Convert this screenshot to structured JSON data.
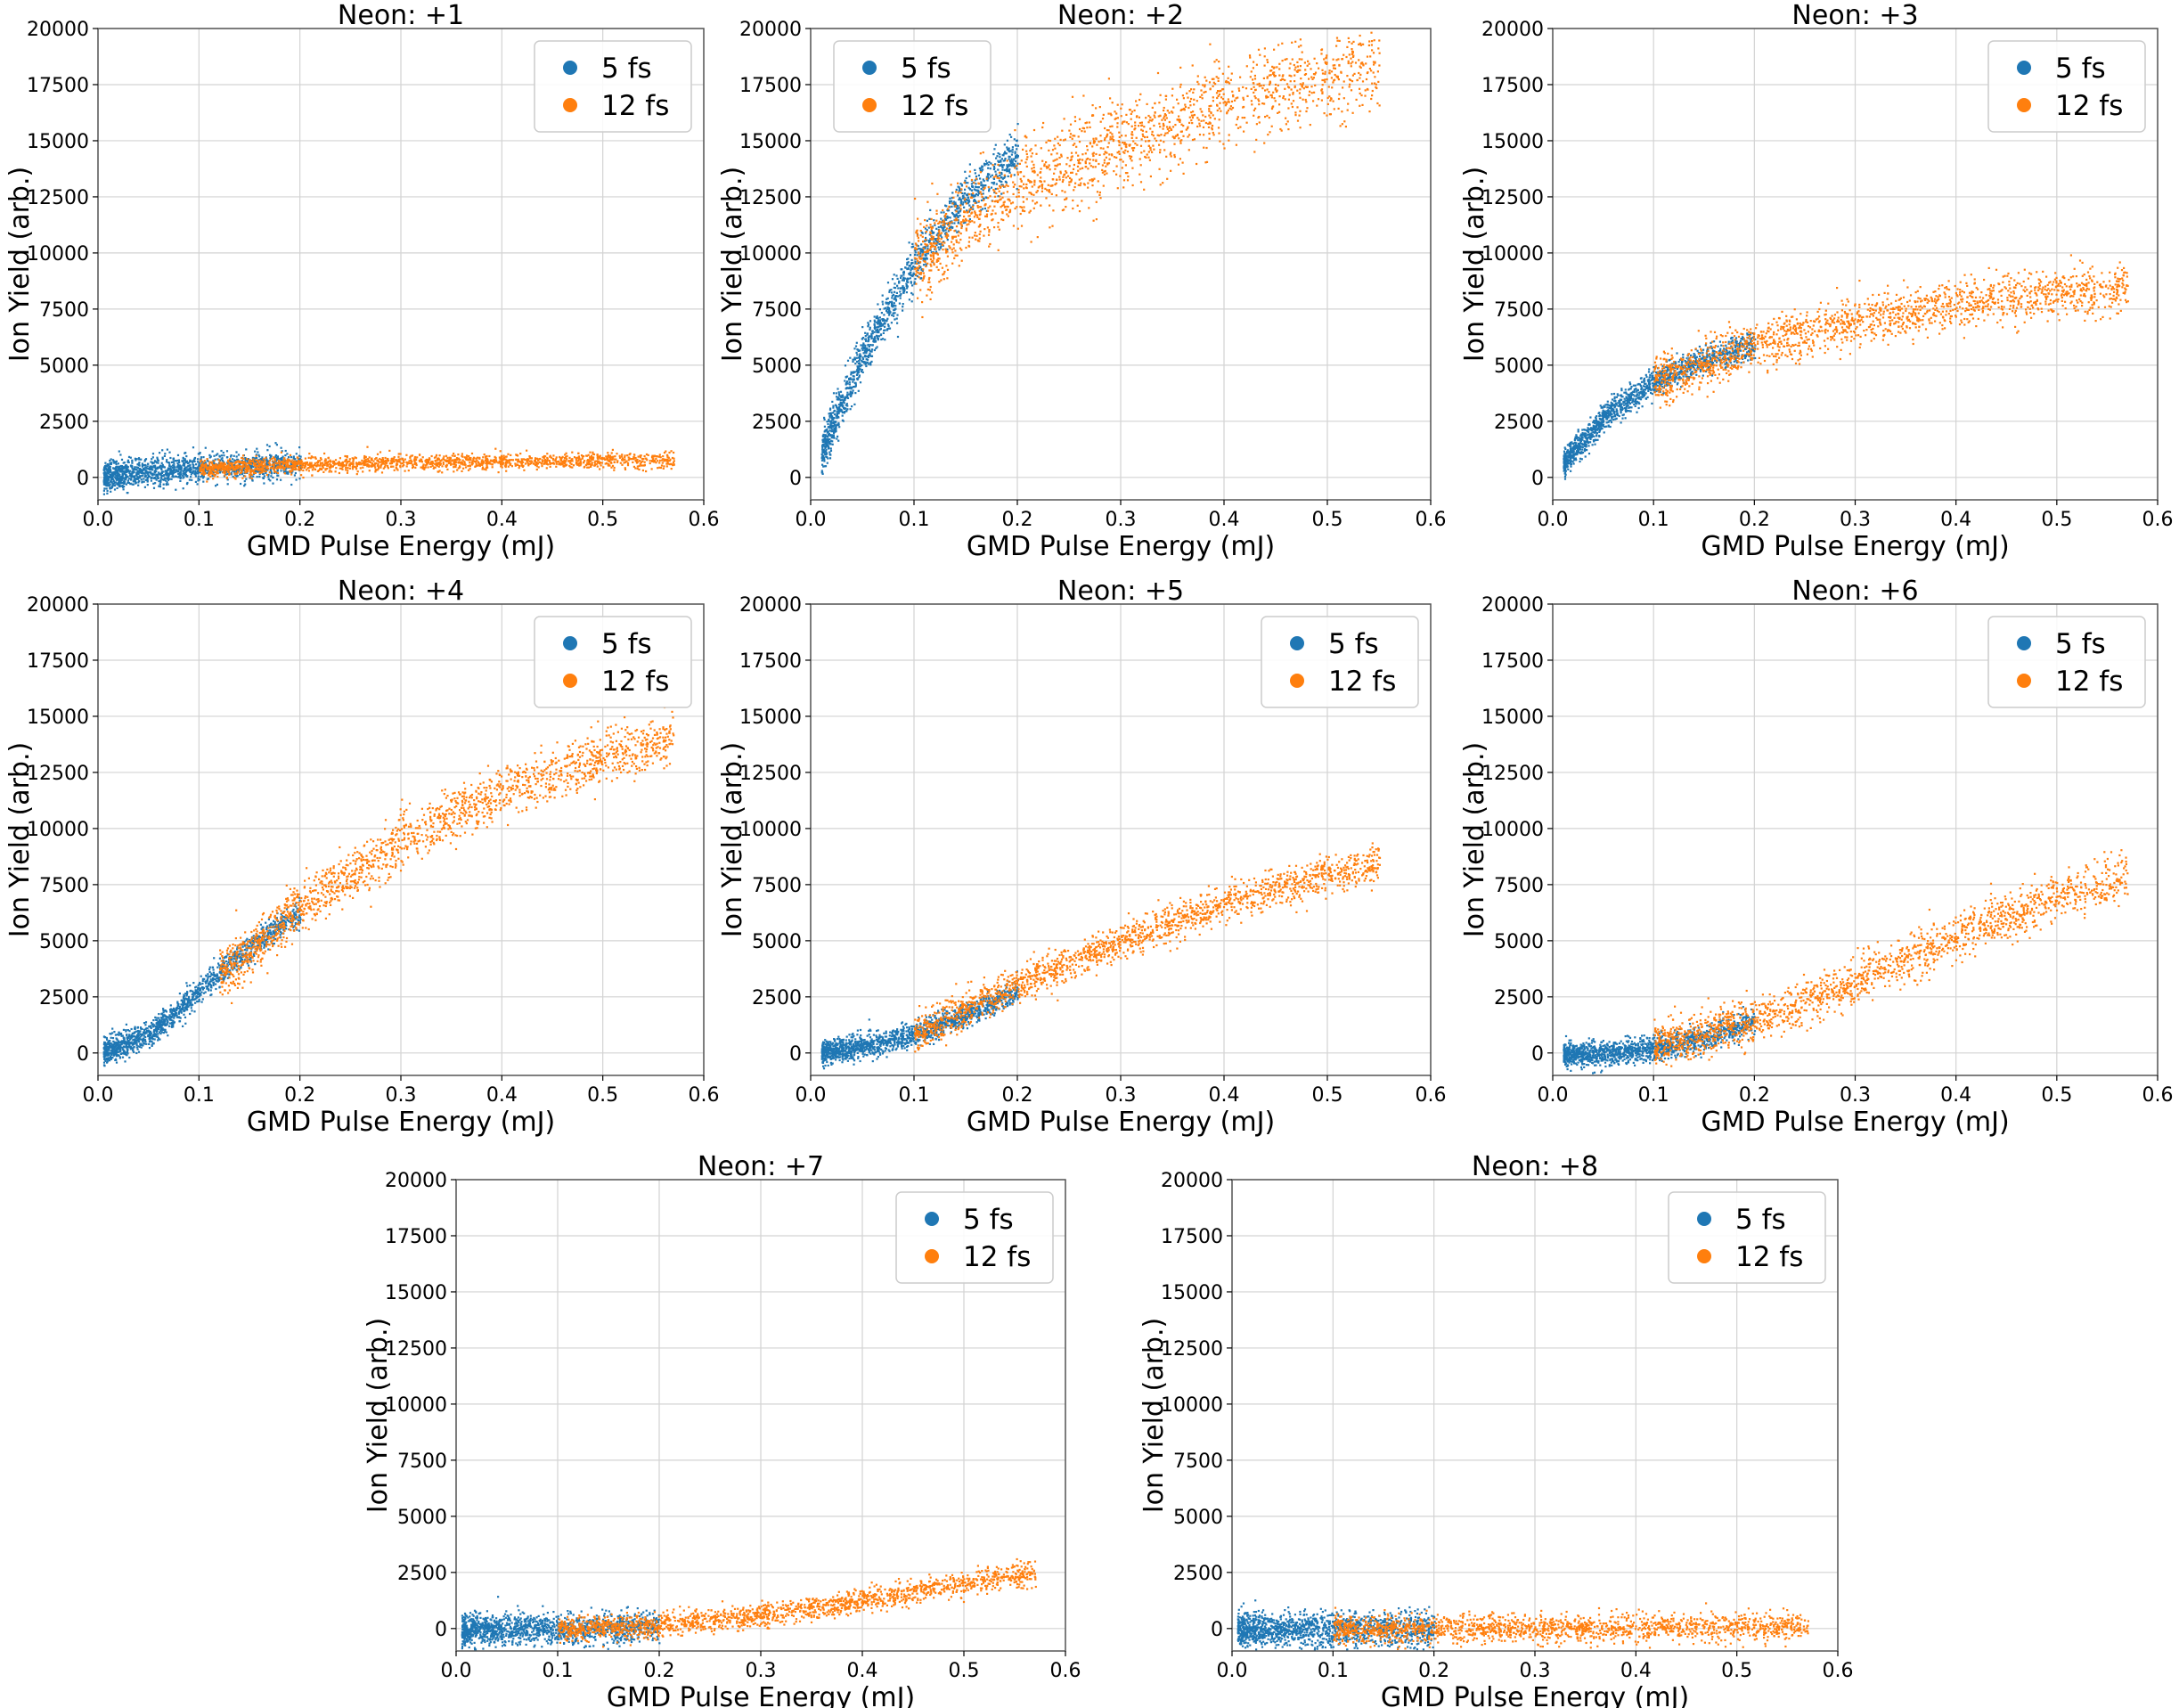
{
  "figure": {
    "xlabel": "GMD Pulse Energy (mJ)",
    "ylabel": "Ion Yield (arb.)",
    "legend": [
      "5 fs",
      "12 fs"
    ]
  },
  "colors": {
    "s5": "#1f77b4",
    "s12": "#ff7f0e",
    "grid": "#d3d3d3",
    "axis": "#555555"
  },
  "chart_data": [
    {
      "type": "scatter",
      "title": "Neon: +1",
      "xlabel": "GMD Pulse Energy (mJ)",
      "ylabel": "Ion Yield (arb.)",
      "xlim": [
        0.0,
        0.6
      ],
      "ylim": [
        -1000,
        20000
      ],
      "xticks": [
        "0.0",
        "0.1",
        "0.2",
        "0.3",
        "0.4",
        "0.5",
        "0.6"
      ],
      "yticks": [
        "0",
        "2500",
        "5000",
        "7500",
        "10000",
        "12500",
        "15000",
        "17500",
        "20000"
      ],
      "grid": true,
      "legend_position": "top-right",
      "series": [
        {
          "name": "5 fs",
          "x_range": [
            0.005,
            0.2
          ],
          "trend": [
            [
              0.005,
              100
            ],
            [
              0.05,
              300
            ],
            [
              0.1,
              450
            ],
            [
              0.15,
              550
            ],
            [
              0.2,
              600
            ]
          ],
          "spread": 320
        },
        {
          "name": "12 fs",
          "x_range": [
            0.1,
            0.57
          ],
          "trend": [
            [
              0.1,
              450
            ],
            [
              0.2,
              600
            ],
            [
              0.3,
              700
            ],
            [
              0.4,
              750
            ],
            [
              0.5,
              800
            ],
            [
              0.57,
              850
            ]
          ],
          "spread": 180
        }
      ]
    },
    {
      "type": "scatter",
      "title": "Neon: +2",
      "xlabel": "GMD Pulse Energy (mJ)",
      "ylabel": "Ion Yield (arb.)",
      "xlim": [
        0.0,
        0.6
      ],
      "ylim": [
        -1000,
        20000
      ],
      "xticks": [
        "0.0",
        "0.1",
        "0.2",
        "0.3",
        "0.4",
        "0.5",
        "0.6"
      ],
      "yticks": [
        "0",
        "2500",
        "5000",
        "7500",
        "10000",
        "12500",
        "15000",
        "17500",
        "20000"
      ],
      "grid": true,
      "legend_position": "top-left",
      "series": [
        {
          "name": "5 fs",
          "x_range": [
            0.01,
            0.2
          ],
          "trend": [
            [
              0.01,
              1200
            ],
            [
              0.05,
              5500
            ],
            [
              0.1,
              9500
            ],
            [
              0.15,
              12500
            ],
            [
              0.2,
              14500
            ]
          ],
          "spread": 500
        },
        {
          "name": "12 fs",
          "x_range": [
            0.1,
            0.55
          ],
          "trend": [
            [
              0.1,
              9500
            ],
            [
              0.15,
              11500
            ],
            [
              0.2,
              13000
            ],
            [
              0.3,
              15000
            ],
            [
              0.4,
              16800
            ],
            [
              0.5,
              18000
            ],
            [
              0.55,
              18500
            ]
          ],
          "spread": 1000
        }
      ]
    },
    {
      "type": "scatter",
      "title": "Neon: +3",
      "xlabel": "GMD Pulse Energy (mJ)",
      "ylabel": "Ion Yield (arb.)",
      "xlim": [
        0.0,
        0.6
      ],
      "ylim": [
        -1000,
        20000
      ],
      "xticks": [
        "0.0",
        "0.1",
        "0.2",
        "0.3",
        "0.4",
        "0.5",
        "0.6"
      ],
      "yticks": [
        "0",
        "2500",
        "5000",
        "7500",
        "10000",
        "12500",
        "15000",
        "17500",
        "20000"
      ],
      "grid": true,
      "legend_position": "top-right",
      "series": [
        {
          "name": "5 fs",
          "x_range": [
            0.01,
            0.2
          ],
          "trend": [
            [
              0.01,
              700
            ],
            [
              0.05,
              2700
            ],
            [
              0.1,
              4300
            ],
            [
              0.15,
              5300
            ],
            [
              0.2,
              5900
            ]
          ],
          "spread": 300
        },
        {
          "name": "12 fs",
          "x_range": [
            0.1,
            0.57
          ],
          "trend": [
            [
              0.1,
              4300
            ],
            [
              0.2,
              5900
            ],
            [
              0.3,
              7000
            ],
            [
              0.4,
              7800
            ],
            [
              0.5,
              8200
            ],
            [
              0.57,
              8500
            ]
          ],
          "spread": 550
        }
      ]
    },
    {
      "type": "scatter",
      "title": "Neon: +4",
      "xlabel": "GMD Pulse Energy (mJ)",
      "ylabel": "Ion Yield (arb.)",
      "xlim": [
        0.0,
        0.6
      ],
      "ylim": [
        -1000,
        20000
      ],
      "xticks": [
        "0.0",
        "0.1",
        "0.2",
        "0.3",
        "0.4",
        "0.5",
        "0.6"
      ],
      "yticks": [
        "0",
        "2500",
        "5000",
        "7500",
        "10000",
        "12500",
        "15000",
        "17500",
        "20000"
      ],
      "grid": true,
      "legend_position": "top-right",
      "series": [
        {
          "name": "5 fs",
          "x_range": [
            0.005,
            0.2
          ],
          "trend": [
            [
              0.005,
              100
            ],
            [
              0.05,
              800
            ],
            [
              0.1,
              2800
            ],
            [
              0.15,
              4800
            ],
            [
              0.2,
              6300
            ]
          ],
          "spread": 300
        },
        {
          "name": "12 fs",
          "x_range": [
            0.12,
            0.57
          ],
          "trend": [
            [
              0.12,
              3500
            ],
            [
              0.2,
              6500
            ],
            [
              0.3,
              9500
            ],
            [
              0.4,
              11700
            ],
            [
              0.5,
              13200
            ],
            [
              0.57,
              14000
            ]
          ],
          "spread": 600
        }
      ]
    },
    {
      "type": "scatter",
      "title": "Neon: +5",
      "xlabel": "GMD Pulse Energy (mJ)",
      "ylabel": "Ion Yield (arb.)",
      "xlim": [
        0.0,
        0.6
      ],
      "ylim": [
        -1000,
        20000
      ],
      "xticks": [
        "0.0",
        "0.1",
        "0.2",
        "0.3",
        "0.4",
        "0.5",
        "0.6"
      ],
      "yticks": [
        "0",
        "2500",
        "5000",
        "7500",
        "10000",
        "12500",
        "15000",
        "17500",
        "20000"
      ],
      "grid": true,
      "legend_position": "top-right",
      "series": [
        {
          "name": "5 fs",
          "x_range": [
            0.01,
            0.2
          ],
          "trend": [
            [
              0.01,
              50
            ],
            [
              0.05,
              300
            ],
            [
              0.1,
              900
            ],
            [
              0.15,
              1700
            ],
            [
              0.2,
              2800
            ]
          ],
          "spread": 260
        },
        {
          "name": "12 fs",
          "x_range": [
            0.1,
            0.55
          ],
          "trend": [
            [
              0.1,
              900
            ],
            [
              0.2,
              3100
            ],
            [
              0.3,
              5000
            ],
            [
              0.4,
              6700
            ],
            [
              0.5,
              8000
            ],
            [
              0.55,
              8500
            ]
          ],
          "spread": 400
        }
      ]
    },
    {
      "type": "scatter",
      "title": "Neon: +6",
      "xlabel": "GMD Pulse Energy (mJ)",
      "ylabel": "Ion Yield (arb.)",
      "xlim": [
        0.0,
        0.6
      ],
      "ylim": [
        -1000,
        20000
      ],
      "xticks": [
        "0.0",
        "0.1",
        "0.2",
        "0.3",
        "0.4",
        "0.5",
        "0.6"
      ],
      "yticks": [
        "0",
        "2500",
        "5000",
        "7500",
        "10000",
        "12500",
        "15000",
        "17500",
        "20000"
      ],
      "grid": true,
      "legend_position": "top-right",
      "series": [
        {
          "name": "5 fs",
          "x_range": [
            0.01,
            0.2
          ],
          "trend": [
            [
              0.01,
              0
            ],
            [
              0.05,
              0
            ],
            [
              0.1,
              250
            ],
            [
              0.15,
              700
            ],
            [
              0.2,
              1500
            ]
          ],
          "spread": 280
        },
        {
          "name": "12 fs",
          "x_range": [
            0.1,
            0.57
          ],
          "trend": [
            [
              0.1,
              300
            ],
            [
              0.2,
              1500
            ],
            [
              0.3,
              3200
            ],
            [
              0.4,
              5200
            ],
            [
              0.5,
              7000
            ],
            [
              0.57,
              8000
            ]
          ],
          "spread": 500
        }
      ]
    },
    {
      "type": "scatter",
      "title": "Neon: +7",
      "xlabel": "GMD Pulse Energy (mJ)",
      "ylabel": "Ion Yield (arb.)",
      "xlim": [
        0.0,
        0.6
      ],
      "ylim": [
        -1000,
        20000
      ],
      "xticks": [
        "0.0",
        "0.1",
        "0.2",
        "0.3",
        "0.4",
        "0.5",
        "0.6"
      ],
      "yticks": [
        "0",
        "2500",
        "5000",
        "7500",
        "10000",
        "12500",
        "15000",
        "17500",
        "20000"
      ],
      "grid": true,
      "legend_position": "top-right",
      "series": [
        {
          "name": "5 fs",
          "x_range": [
            0.005,
            0.2
          ],
          "trend": [
            [
              0.005,
              0
            ],
            [
              0.1,
              0
            ],
            [
              0.15,
              50
            ],
            [
              0.2,
              150
            ]
          ],
          "spread": 330
        },
        {
          "name": "12 fs",
          "x_range": [
            0.1,
            0.57
          ],
          "trend": [
            [
              0.1,
              0
            ],
            [
              0.2,
              200
            ],
            [
              0.3,
              600
            ],
            [
              0.4,
              1300
            ],
            [
              0.5,
              2100
            ],
            [
              0.57,
              2500
            ]
          ],
          "spread": 260
        }
      ]
    },
    {
      "type": "scatter",
      "title": "Neon: +8",
      "xlabel": "GMD Pulse Energy (mJ)",
      "ylabel": "Ion Yield (arb.)",
      "xlim": [
        0.0,
        0.6
      ],
      "ylim": [
        -1000,
        20000
      ],
      "xticks": [
        "0.0",
        "0.1",
        "0.2",
        "0.3",
        "0.4",
        "0.5",
        "0.6"
      ],
      "yticks": [
        "0",
        "2500",
        "5000",
        "7500",
        "10000",
        "12500",
        "15000",
        "17500",
        "20000"
      ],
      "grid": true,
      "legend_position": "top-right",
      "series": [
        {
          "name": "5 fs",
          "x_range": [
            0.005,
            0.2
          ],
          "trend": [
            [
              0.005,
              0
            ],
            [
              0.2,
              0
            ]
          ],
          "spread": 380
        },
        {
          "name": "12 fs",
          "x_range": [
            0.1,
            0.57
          ],
          "trend": [
            [
              0.1,
              0
            ],
            [
              0.3,
              50
            ],
            [
              0.57,
              100
            ]
          ],
          "spread": 320
        }
      ]
    }
  ]
}
